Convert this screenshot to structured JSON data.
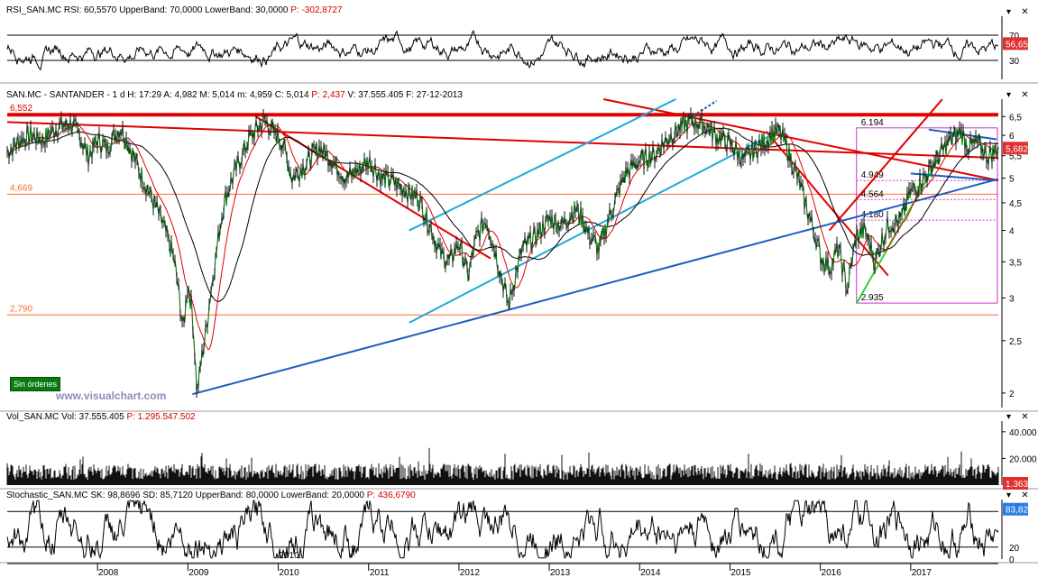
{
  "panels": {
    "rsi": {
      "header": {
        "name": "RSI_SAN.MC",
        "rsi": "RSI: 60,5570",
        "upper": "UpperBand: 70,0000",
        "lower": "LowerBand: 30,0000",
        "p": "P: -302,8727"
      },
      "ticks": [
        "70",
        "30"
      ],
      "last": "56,65"
    },
    "price": {
      "header": {
        "name": "SAN.MC - SANTANDER - 1 d",
        "h": "H: 17:29",
        "a": "A: 4,982",
        "m": "M: 5,014",
        "mi": "m: 4,959",
        "c": "C: 5,014",
        "p": "P: 2,437",
        "v": "V: 37.555.405",
        "f": "F: 27-12-2013"
      },
      "last": "5,682"
    },
    "volume": {
      "header": {
        "name": "Vol_SAN.MC",
        "vol": "Vol: 37.555.405",
        "p": "P: 1.295.547.502"
      },
      "ticks": [
        "40.000",
        "20.000"
      ],
      "last": "1.363"
    },
    "stochastic": {
      "header": {
        "name": "Stochastic_SAN.MC",
        "sk": "SK: 98,8696",
        "sd": "SD: 85,7120",
        "upper": "UpperBand: 80,0000",
        "lower": "LowerBand: 20,0000",
        "p": "P: 436,6790"
      },
      "ticks": [
        "20",
        "0"
      ],
      "last": "83,82"
    }
  },
  "watermark": "www.visualchart.com",
  "badge": "Sin órdenes",
  "cursor_year": "2010",
  "levels": [
    {
      "label": "6,552",
      "value": 6.552,
      "color": "#e00000"
    },
    {
      "label": "4,669",
      "value": 4.669,
      "color": "#ff6a30"
    },
    {
      "label": "2,790",
      "value": 2.79,
      "color": "#ff6a30"
    }
  ],
  "fib_labels": [
    {
      "label": "6.194",
      "value": 6.194
    },
    {
      "label": "4.949",
      "value": 4.949
    },
    {
      "label": "4.564",
      "value": 4.564
    },
    {
      "label": "4.180",
      "value": 4.18
    },
    {
      "label": "2.935",
      "value": 2.935
    }
  ],
  "chart_data": [
    {
      "type": "line",
      "title": "SAN.MC - SANTANDER - 1 d",
      "x_labels": [
        "2008",
        "2009",
        "2010",
        "2011",
        "2012",
        "2013",
        "2014",
        "2015",
        "2016",
        "2017"
      ],
      "y_ticks": [
        "6,5",
        "6",
        "5,5",
        "5",
        "4,5",
        "4",
        "3,5",
        "3",
        "2,5",
        "2"
      ],
      "y_scale": "log",
      "ylim": [
        1.88,
        7.0
      ],
      "series": [
        {
          "x": [
            2007.0,
            2007.1,
            2007.25,
            2007.4,
            2007.55,
            2007.7,
            2007.8,
            2007.9,
            2008.0,
            2008.1,
            2008.25,
            2008.4,
            2008.5,
            2008.6,
            2008.75,
            2008.85,
            2008.95,
            2009.0,
            2009.05,
            2009.1,
            2009.2,
            2009.3,
            2009.4,
            2009.55,
            2009.7,
            2009.85,
            2009.95,
            2010.05,
            2010.15,
            2010.3,
            2010.45,
            2010.6,
            2010.75,
            2010.9,
            2011.0,
            2011.15,
            2011.3,
            2011.45,
            2011.55,
            2011.7,
            2011.8,
            2011.9,
            2012.0,
            2012.1,
            2012.2,
            2012.3,
            2012.45,
            2012.55,
            2012.7,
            2012.85,
            2013.0,
            2013.15,
            2013.3,
            2013.45,
            2013.55,
            2013.7,
            2013.85,
            2014.0,
            2014.15,
            2014.3,
            2014.45,
            2014.6,
            2014.75,
            2014.9,
            2015.0,
            2015.15,
            2015.3,
            2015.45,
            2015.55,
            2015.7,
            2015.85,
            2016.0,
            2016.1,
            2016.2,
            2016.3,
            2016.4,
            2016.5,
            2016.6,
            2016.75,
            2016.9,
            2017.0,
            2017.15,
            2017.25,
            2017.35,
            2017.45,
            2017.55,
            2017.65,
            2017.75,
            2017.85,
            2017.97
          ],
          "y": [
            5.6,
            5.8,
            6.0,
            5.9,
            6.2,
            6.3,
            6.0,
            5.5,
            5.9,
            5.7,
            6.2,
            5.5,
            5.0,
            4.6,
            4.0,
            3.5,
            2.6,
            3.2,
            2.8,
            2.0,
            2.6,
            3.5,
            4.5,
            5.3,
            6.0,
            6.4,
            6.1,
            5.8,
            5.0,
            5.3,
            5.7,
            5.4,
            5.0,
            5.2,
            5.4,
            5.0,
            4.9,
            4.7,
            4.6,
            4.0,
            3.6,
            3.5,
            3.8,
            3.3,
            3.9,
            4.2,
            3.4,
            2.9,
            3.7,
            3.9,
            4.2,
            4.1,
            4.4,
            3.9,
            3.7,
            4.4,
            5.1,
            5.4,
            5.5,
            5.9,
            6.2,
            6.4,
            6.2,
            5.9,
            5.8,
            5.4,
            5.7,
            6.0,
            6.1,
            5.3,
            4.4,
            3.6,
            3.4,
            3.7,
            3.1,
            3.9,
            4.0,
            3.5,
            4.1,
            4.2,
            4.7,
            5.0,
            5.3,
            5.6,
            5.9,
            6.1,
            5.7,
            5.8,
            5.5,
            5.68
          ]
        }
      ]
    }
  ]
}
